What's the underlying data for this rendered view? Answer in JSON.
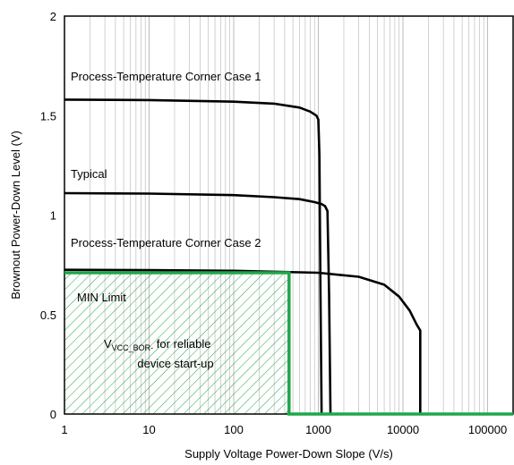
{
  "chart_data": {
    "type": "line",
    "xlabel": "Supply Voltage Power-Down Slope (V/s)",
    "ylabel": "Brownout Power-Down Level (V)",
    "xscale": "log",
    "xlim": [
      1,
      200000
    ],
    "ylim": [
      0,
      2
    ],
    "xticks": [
      1,
      10,
      100,
      1000,
      10000,
      100000
    ],
    "xtick_labels": [
      "1",
      "10",
      "100",
      "1000",
      "10000",
      "100000"
    ],
    "yticks": [
      0,
      0.5,
      1,
      1.5,
      2
    ],
    "ytick_labels": [
      "0",
      "0.5",
      "1",
      "1.5",
      "2"
    ],
    "grid": "log-x minor vertical lines",
    "colors": {
      "series": "#000000",
      "min_limit": "#1fa64a",
      "grid": "#b4b4b4"
    },
    "series": [
      {
        "name": "Process-Temperature Corner Case 1",
        "x": [
          1,
          10,
          100,
          300,
          600,
          800,
          950,
          1000,
          1030,
          1060,
          1090,
          1090
        ],
        "y": [
          1.58,
          1.578,
          1.57,
          1.56,
          1.54,
          1.52,
          1.5,
          1.48,
          1.3,
          0.6,
          0.02,
          0
        ]
      },
      {
        "name": "Typical",
        "x": [
          1,
          10,
          100,
          300,
          600,
          900,
          1100,
          1200,
          1280,
          1340,
          1390,
          1390
        ],
        "y": [
          1.11,
          1.108,
          1.1,
          1.09,
          1.08,
          1.065,
          1.055,
          1.045,
          1.02,
          0.6,
          0.02,
          0
        ]
      },
      {
        "name": "Process-Temperature Corner Case 2",
        "x": [
          1,
          10,
          100,
          1000,
          3000,
          6000,
          9000,
          12000,
          14500,
          16000,
          16000
        ],
        "y": [
          0.725,
          0.723,
          0.72,
          0.71,
          0.69,
          0.65,
          0.59,
          0.52,
          0.45,
          0.42,
          0
        ]
      }
    ],
    "min_limit": {
      "label": "MIN Limit",
      "x": [
        1,
        450,
        450,
        200000
      ],
      "y": [
        0.71,
        0.71,
        0,
        0
      ]
    },
    "annotations": {
      "vcc_main": "V",
      "vcc_sub": "VCC_BOR-",
      "vcc_rest": " for reliable",
      "vcc_line2": "device start-up"
    }
  }
}
